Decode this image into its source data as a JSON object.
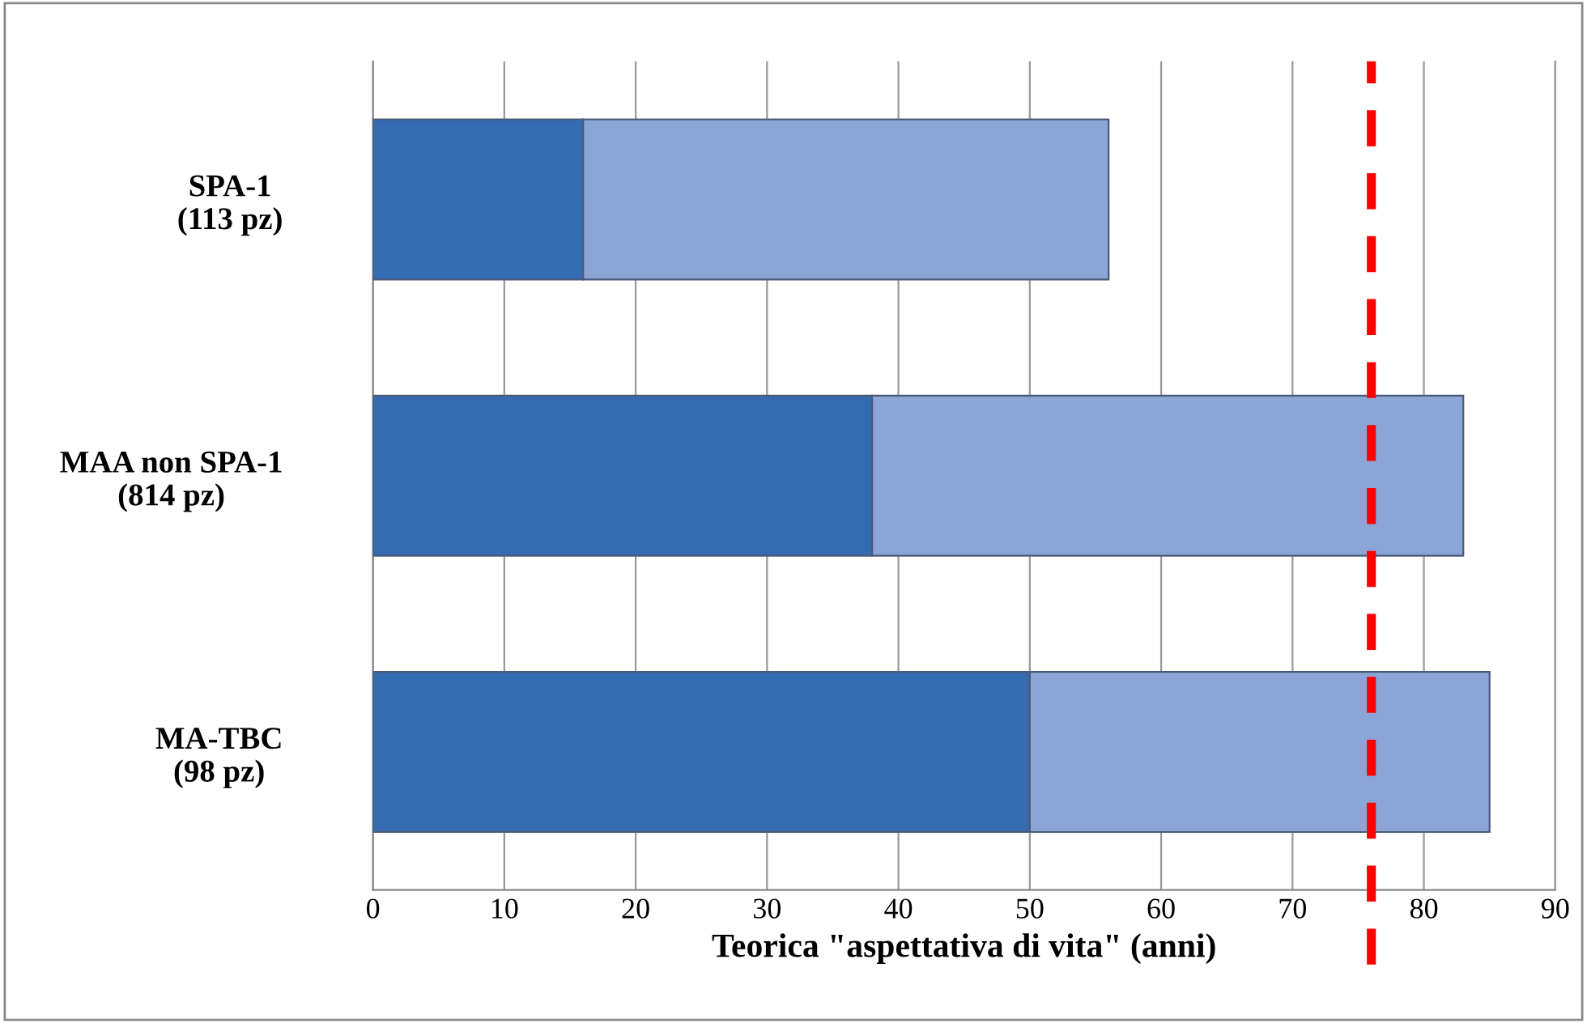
{
  "chart_data": {
    "type": "bar",
    "orientation": "horizontal",
    "stacked": true,
    "categories": [
      "SPA-1\n(113 pz)",
      "MAA non SPA-1\n(814 pz)",
      "MA-TBC\n(98 pz)"
    ],
    "series": [
      {
        "color": "#356bb0",
        "values": [
          16,
          38,
          50
        ]
      },
      {
        "color": "#8aa5d6",
        "values": [
          40,
          45,
          35
        ]
      }
    ],
    "xlabel": "Teorica \"aspettativa di vita\" (anni)",
    "xlim": [
      0,
      90
    ],
    "xticks": [
      0,
      10,
      20,
      30,
      40,
      50,
      60,
      70,
      80,
      90
    ],
    "grid": "x",
    "ref_lines": [
      {
        "axis": "x",
        "value": 76,
        "color": "#ff0000",
        "line_style": "dashed"
      }
    ]
  }
}
